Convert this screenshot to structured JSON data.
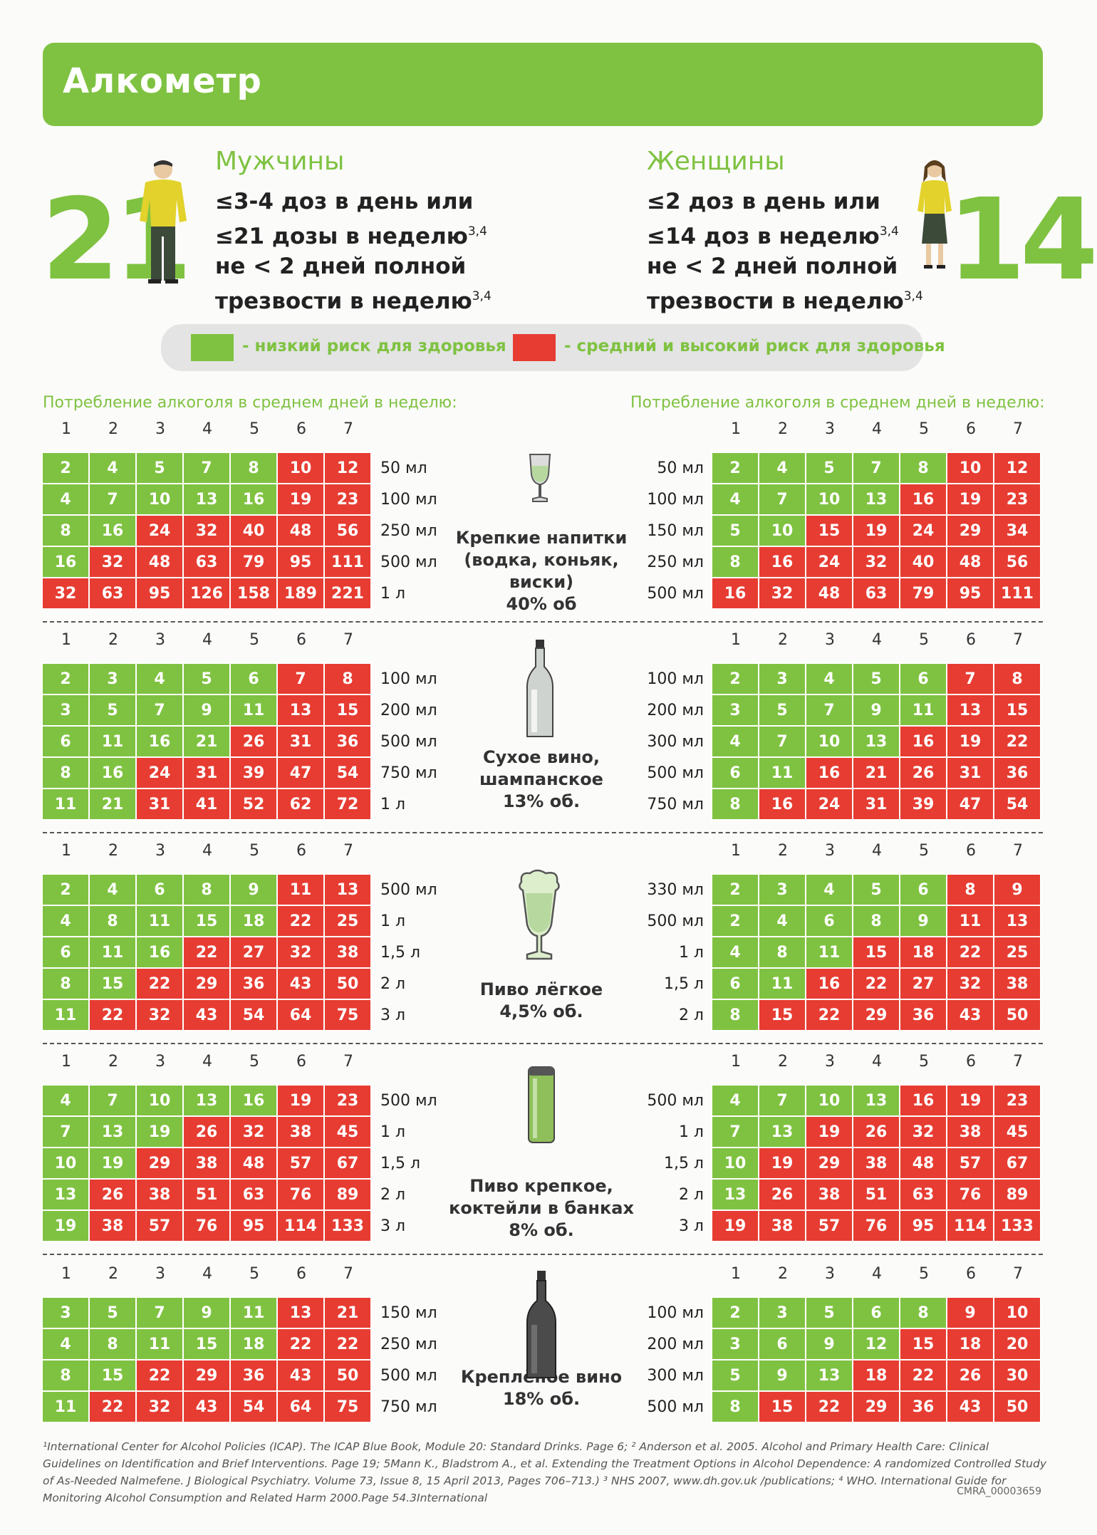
{
  "title": "Алкометр",
  "men": {
    "number": "21",
    "title": "Мужчины",
    "line1": "≤3-4 доз в день или",
    "line2": "≤21 дозы в неделю",
    "line3": "не < 2 дней полной",
    "line4": "трезвости в неделю",
    "ref": "3,4"
  },
  "women": {
    "number": "14",
    "title": "Женщины",
    "line1": "≤2 доз в день или",
    "line2": "≤14 доз в неделю",
    "line3": "не < 2 дней полной",
    "line4": "трезвости в неделю",
    "ref": "3,4"
  },
  "legend": {
    "low": "- низкий риск для здоровья",
    "high": "- средний и высокий риск для здоровья",
    "low_color": "#7fc241",
    "high_color": "#e73c32"
  },
  "caption": "Потребление алкоголя в среднем дней в неделю:",
  "days": [
    "1",
    "2",
    "3",
    "4",
    "5",
    "6",
    "7"
  ],
  "sections": [
    {
      "icon": "shot-glass-icon",
      "name": "Крепкие напитки\n(водка, коньяк,\nвиски)\n40% об",
      "men": {
        "volumes": [
          "50 мл",
          "100 мл",
          "250 мл",
          "500 мл",
          "1 л"
        ],
        "rows": [
          [
            2,
            4,
            5,
            7,
            8,
            10,
            12
          ],
          [
            4,
            7,
            10,
            13,
            16,
            19,
            23
          ],
          [
            8,
            16,
            24,
            32,
            40,
            48,
            56
          ],
          [
            16,
            32,
            48,
            63,
            79,
            95,
            111
          ],
          [
            32,
            63,
            95,
            126,
            158,
            189,
            221
          ]
        ],
        "red_from": [
          5,
          5,
          2,
          1,
          0
        ]
      },
      "women": {
        "volumes": [
          "50 мл",
          "100 мл",
          "150 мл",
          "250 мл",
          "500 мл"
        ],
        "rows": [
          [
            2,
            4,
            5,
            7,
            8,
            10,
            12
          ],
          [
            4,
            7,
            10,
            13,
            16,
            19,
            23
          ],
          [
            5,
            10,
            15,
            19,
            24,
            29,
            34
          ],
          [
            8,
            16,
            24,
            32,
            40,
            48,
            56
          ],
          [
            16,
            32,
            48,
            63,
            79,
            95,
            111
          ]
        ],
        "red_from": [
          5,
          4,
          2,
          1,
          0
        ]
      }
    },
    {
      "icon": "wine-bottle-icon",
      "name": "Сухое вино,\nшампанское\n13% об.",
      "men": {
        "volumes": [
          "100 мл",
          "200 мл",
          "500 мл",
          "750 мл",
          "1 л"
        ],
        "rows": [
          [
            2,
            3,
            4,
            5,
            6,
            7,
            8
          ],
          [
            3,
            5,
            7,
            9,
            11,
            13,
            15
          ],
          [
            6,
            11,
            16,
            21,
            26,
            31,
            36
          ],
          [
            8,
            16,
            24,
            31,
            39,
            47,
            54
          ],
          [
            11,
            21,
            31,
            41,
            52,
            62,
            72
          ]
        ],
        "red_from": [
          5,
          5,
          4,
          2,
          2
        ]
      },
      "women": {
        "volumes": [
          "100 мл",
          "200 мл",
          "300 мл",
          "500 мл",
          "750 мл"
        ],
        "rows": [
          [
            2,
            3,
            4,
            5,
            6,
            7,
            8
          ],
          [
            3,
            5,
            7,
            9,
            11,
            13,
            15
          ],
          [
            4,
            7,
            10,
            13,
            16,
            19,
            22
          ],
          [
            6,
            11,
            16,
            21,
            26,
            31,
            36
          ],
          [
            8,
            16,
            24,
            31,
            39,
            47,
            54
          ]
        ],
        "red_from": [
          5,
          5,
          4,
          2,
          1
        ]
      }
    },
    {
      "icon": "beer-glass-icon",
      "name": "Пиво лёгкое\n4,5% об.",
      "men": {
        "volumes": [
          "500 мл",
          "1 л",
          "1,5 л",
          "2 л",
          "3 л"
        ],
        "rows": [
          [
            2,
            4,
            6,
            8,
            9,
            11,
            13
          ],
          [
            4,
            8,
            11,
            15,
            18,
            22,
            25
          ],
          [
            6,
            11,
            16,
            22,
            27,
            32,
            38
          ],
          [
            8,
            15,
            22,
            29,
            36,
            43,
            50
          ],
          [
            11,
            22,
            32,
            43,
            54,
            64,
            75
          ]
        ],
        "red_from": [
          5,
          5,
          3,
          2,
          1
        ]
      },
      "women": {
        "volumes": [
          "330 мл",
          "500 мл",
          "1 л",
          "1,5 л",
          "2 л"
        ],
        "rows": [
          [
            2,
            3,
            4,
            5,
            6,
            8,
            9
          ],
          [
            2,
            4,
            6,
            8,
            9,
            11,
            13
          ],
          [
            4,
            8,
            11,
            15,
            18,
            22,
            25
          ],
          [
            6,
            11,
            16,
            22,
            27,
            32,
            38
          ],
          [
            8,
            15,
            22,
            29,
            36,
            43,
            50
          ]
        ],
        "red_from": [
          5,
          5,
          3,
          2,
          1
        ]
      }
    },
    {
      "icon": "beer-can-icon",
      "name": "Пиво крепкое,\nкоктейли в банках\n8% об.",
      "men": {
        "volumes": [
          "500 мл",
          "1 л",
          "1,5 л",
          "2 л",
          "3 л"
        ],
        "rows": [
          [
            4,
            7,
            10,
            13,
            16,
            19,
            23
          ],
          [
            7,
            13,
            19,
            26,
            32,
            38,
            45
          ],
          [
            10,
            19,
            29,
            38,
            48,
            57,
            67
          ],
          [
            13,
            26,
            38,
            51,
            63,
            76,
            89
          ],
          [
            19,
            38,
            57,
            76,
            95,
            114,
            133
          ]
        ],
        "red_from": [
          5,
          3,
          2,
          1,
          1
        ]
      },
      "women": {
        "volumes": [
          "500 мл",
          "1 л",
          "1,5 л",
          "2 л",
          "3 л"
        ],
        "rows": [
          [
            4,
            7,
            10,
            13,
            16,
            19,
            23
          ],
          [
            7,
            13,
            19,
            26,
            32,
            38,
            45
          ],
          [
            10,
            19,
            29,
            38,
            48,
            57,
            67
          ],
          [
            13,
            26,
            38,
            51,
            63,
            76,
            89
          ],
          [
            19,
            38,
            57,
            76,
            95,
            114,
            133
          ]
        ],
        "red_from": [
          4,
          2,
          1,
          1,
          0
        ]
      }
    },
    {
      "icon": "fortified-wine-bottle-icon",
      "name": "Креплёное вино\n18% об.",
      "men": {
        "volumes": [
          "150 мл",
          "250 мл",
          "500 мл",
          "750 мл"
        ],
        "rows": [
          [
            3,
            5,
            7,
            9,
            11,
            13,
            21
          ],
          [
            4,
            8,
            11,
            15,
            18,
            22,
            22
          ],
          [
            8,
            15,
            22,
            29,
            36,
            43,
            50
          ],
          [
            11,
            22,
            32,
            43,
            54,
            64,
            75
          ]
        ],
        "red_from": [
          5,
          5,
          2,
          1
        ]
      },
      "women": {
        "volumes": [
          "100 мл",
          "200 мл",
          "300 мл",
          "500 мл"
        ],
        "rows": [
          [
            2,
            3,
            5,
            6,
            8,
            9,
            10
          ],
          [
            3,
            6,
            9,
            12,
            15,
            18,
            20
          ],
          [
            5,
            9,
            13,
            18,
            22,
            26,
            30
          ],
          [
            8,
            15,
            22,
            29,
            36,
            43,
            50
          ]
        ],
        "red_from": [
          5,
          4,
          3,
          1
        ]
      }
    }
  ],
  "footnote": "¹International Center for Alcohol Policies (ICAP). The ICAP Blue Book, Module 20: Standard Drinks. Page 6; ² Anderson et al. 2005. Alcohol and Primary Health Care: Clinical Guidelines on Identification and Brief Interventions. Page 19; 5Mann K., Bladstrom A., et al. Extending the Treatment Options in Alcohol Dependence: A randomized Controlled Study of As-Needed Nalmefene. J Biological Psychiatry. Volume 73, Issue 8, 15 April 2013, Pages 706–713.) ³ NHS 2007, www.dh.gov.uk /publications; ⁴ WHO. International Guide for Monitoring Alcohol Consumption and Related Harm 2000.Page 54.3International",
  "code": "CMRA_00003659"
}
